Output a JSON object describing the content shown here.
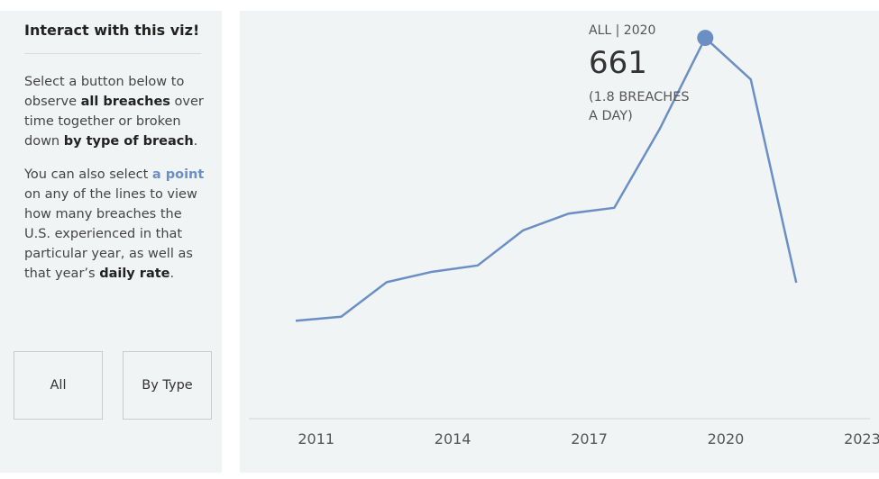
{
  "sidebar": {
    "title": "Interact with this viz!",
    "paragraphs": [
      [
        "Select a button below to observe ",
        "all breaches",
        " over time together or broken down ",
        "by type of breach",
        "."
      ],
      [
        "You can also select ",
        "a point",
        " on any of the lines to view how many breaches the U.S. experienced in that particular year, as well as that year’s ",
        "daily rate",
        "."
      ]
    ],
    "buttons": [
      "All",
      "By Type"
    ]
  },
  "chart_data": {
    "type": "line",
    "x": [
      2011,
      2012,
      2013,
      2014,
      2015,
      2016,
      2017,
      2018,
      2019,
      2020,
      2021,
      2022
    ],
    "series": [
      {
        "name": "All",
        "color": "#6b8fc4",
        "values": [
          170,
          177,
          237,
          255,
          266,
          327,
          356,
          366,
          503,
          661,
          589,
          236
        ]
      }
    ],
    "xlim": [
      2010,
      2023.6
    ],
    "xticks": [
      2011,
      2014,
      2017,
      2020,
      2023
    ],
    "ylim": [
      0,
      708
    ],
    "grid": false,
    "annotation": {
      "header": "ALL | 2020",
      "value": 661,
      "note": "(1.8 BREACHES A DAY)"
    }
  }
}
